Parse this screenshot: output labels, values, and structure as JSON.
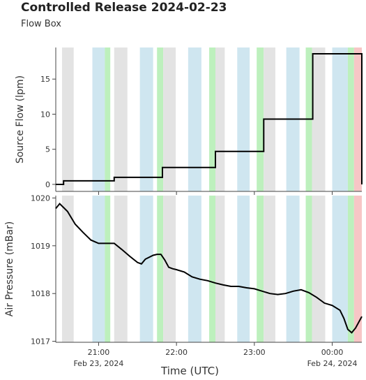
{
  "header": {
    "title": "Controlled Release 2024-02-23",
    "subtitle": "Flow Box"
  },
  "chart_data": [
    {
      "type": "line",
      "name": "flow-panel",
      "ylabel": "Source Flow (lpm)",
      "ylim": [
        -1,
        19.5
      ],
      "yticks": [
        0,
        5,
        10,
        15
      ],
      "ytick_labels": [
        "0",
        "5",
        "10",
        "15"
      ],
      "x_hours": [
        20.45,
        20.55,
        20.55,
        21.2,
        21.2,
        21.82,
        21.82,
        22.5,
        22.5,
        23.12,
        23.12,
        23.75,
        23.75,
        24.38,
        24.38
      ],
      "values": [
        0.0,
        0.0,
        0.5,
        0.5,
        1.0,
        1.0,
        2.4,
        2.4,
        4.7,
        4.7,
        9.3,
        9.3,
        18.6,
        18.6,
        0.0
      ],
      "x_format": "hours after 2024-02-23 00:00 UTC",
      "color": "#000000"
    },
    {
      "type": "line",
      "name": "pressure-panel",
      "ylabel": "Air Pressure (mBar)",
      "ylim": [
        1016.98,
        1020.05
      ],
      "yticks": [
        1017,
        1018,
        1019,
        1020
      ],
      "ytick_labels": [
        "1017",
        "1018",
        "1019",
        "1020"
      ],
      "x_hours": [
        20.45,
        20.5,
        20.55,
        20.6,
        20.7,
        20.8,
        20.9,
        21.0,
        21.1,
        21.2,
        21.3,
        21.4,
        21.5,
        21.55,
        21.6,
        21.7,
        21.75,
        21.8,
        21.85,
        21.9,
        21.95,
        22.0,
        22.1,
        22.2,
        22.3,
        22.4,
        22.5,
        22.6,
        22.7,
        22.8,
        22.9,
        23.0,
        23.1,
        23.2,
        23.3,
        23.4,
        23.5,
        23.6,
        23.7,
        23.8,
        23.9,
        24.0,
        24.1,
        24.15,
        24.2,
        24.25,
        24.3,
        24.38
      ],
      "values": [
        1019.78,
        1019.88,
        1019.8,
        1019.72,
        1019.45,
        1019.28,
        1019.12,
        1019.05,
        1019.05,
        1019.05,
        1018.92,
        1018.78,
        1018.65,
        1018.62,
        1018.72,
        1018.8,
        1018.82,
        1018.82,
        1018.7,
        1018.55,
        1018.52,
        1018.5,
        1018.45,
        1018.35,
        1018.3,
        1018.27,
        1018.22,
        1018.18,
        1018.15,
        1018.15,
        1018.12,
        1018.1,
        1018.05,
        1018.0,
        1017.98,
        1018.0,
        1018.05,
        1018.08,
        1018.02,
        1017.92,
        1017.8,
        1017.75,
        1017.65,
        1017.48,
        1017.25,
        1017.18,
        1017.28,
        1017.52
      ],
      "x_format": "hours after 2024-02-23 00:00 UTC",
      "color": "#000000"
    }
  ],
  "shaded_bands": [
    {
      "x0": 20.53,
      "x1": 20.68,
      "color": "#e3e3e3"
    },
    {
      "x0": 20.92,
      "x1": 21.08,
      "color": "#cfe6f0"
    },
    {
      "x0": 21.08,
      "x1": 21.15,
      "color": "#bdf0bd"
    },
    {
      "x0": 21.2,
      "x1": 21.37,
      "color": "#e3e3e3"
    },
    {
      "x0": 21.53,
      "x1": 21.7,
      "color": "#cfe6f0"
    },
    {
      "x0": 21.75,
      "x1": 21.83,
      "color": "#bdf0bd"
    },
    {
      "x0": 21.83,
      "x1": 21.99,
      "color": "#e3e3e3"
    },
    {
      "x0": 22.15,
      "x1": 22.32,
      "color": "#cfe6f0"
    },
    {
      "x0": 22.42,
      "x1": 22.5,
      "color": "#bdf0bd"
    },
    {
      "x0": 22.5,
      "x1": 22.62,
      "color": "#e3e3e3"
    },
    {
      "x0": 22.78,
      "x1": 22.94,
      "color": "#cfe6f0"
    },
    {
      "x0": 23.03,
      "x1": 23.12,
      "color": "#bdf0bd"
    },
    {
      "x0": 23.12,
      "x1": 23.27,
      "color": "#e3e3e3"
    },
    {
      "x0": 23.41,
      "x1": 23.58,
      "color": "#cfe6f0"
    },
    {
      "x0": 23.66,
      "x1": 23.74,
      "color": "#bdf0bd"
    },
    {
      "x0": 23.74,
      "x1": 23.91,
      "color": "#e3e3e3"
    },
    {
      "x0": 24.0,
      "x1": 24.2,
      "color": "#cfe6f0"
    },
    {
      "x0": 24.2,
      "x1": 24.28,
      "color": "#bdf0bd"
    },
    {
      "x0": 24.28,
      "x1": 24.38,
      "color": "#f7c6c6"
    }
  ],
  "x_axis": {
    "label": "Time (UTC)",
    "ticks": [
      {
        "hour": 21,
        "label": "21:00",
        "date": "Feb 23, 2024"
      },
      {
        "hour": 22,
        "label": "22:00",
        "date": ""
      },
      {
        "hour": 23,
        "label": "23:00",
        "date": ""
      },
      {
        "hour": 24,
        "label": "00:00",
        "date": "Feb 24, 2024"
      }
    ]
  }
}
